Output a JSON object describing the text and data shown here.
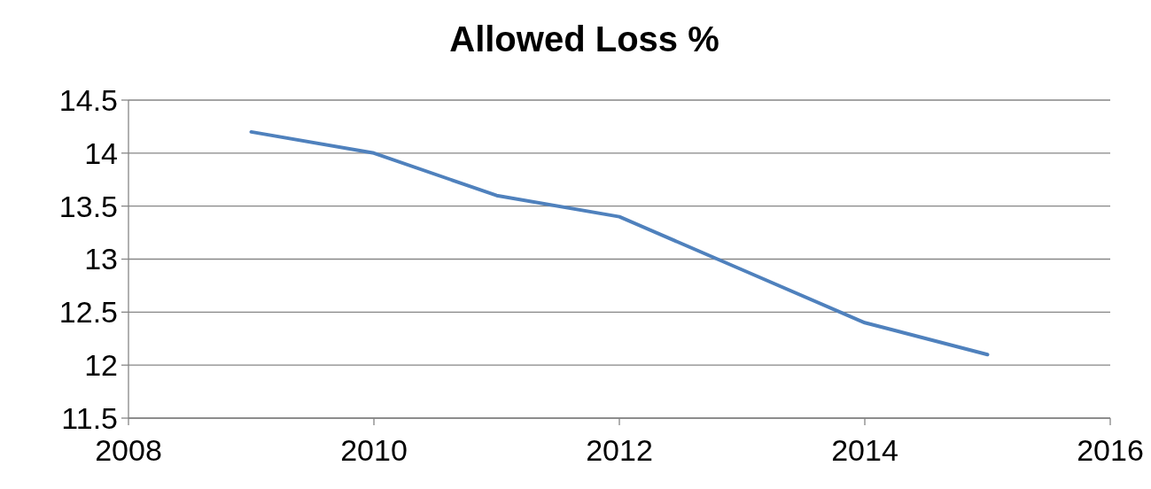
{
  "chart_data": {
    "type": "line",
    "title": "Allowed Loss %",
    "x": [
      2009,
      2010,
      2011,
      2012,
      2013,
      2014,
      2015
    ],
    "series": [
      {
        "color": "#4f81bd",
        "values": [
          14.2,
          14.0,
          13.6,
          13.4,
          12.9,
          12.4,
          12.1
        ]
      }
    ],
    "xlim": [
      2008,
      2016
    ],
    "xticks": [
      2008,
      2010,
      2012,
      2014,
      2016
    ],
    "ylim": [
      11.5,
      14.5
    ],
    "yticks": [
      11.5,
      12,
      12.5,
      13,
      13.5,
      14,
      14.5
    ],
    "grid": "y",
    "marker": "none",
    "line_style": "solid"
  }
}
